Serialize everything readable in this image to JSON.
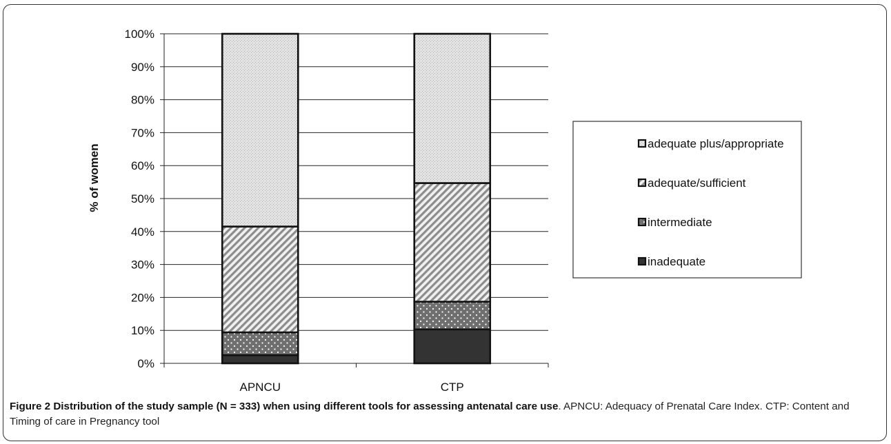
{
  "caption": {
    "label": "Figure 2",
    "title": "Distribution of the study sample (N = 333) when using different tools for assessing antenatal care use",
    "text": ". APNCU: Adequacy of Prenatal Care Index. CTP: Content and Timing of care in Pregnancy tool"
  },
  "chart_data": {
    "type": "bar",
    "stacked": true,
    "ylabel": "% of women",
    "xlabel": "",
    "ylim": [
      0,
      100
    ],
    "yticks": [
      "0%",
      "10%",
      "20%",
      "30%",
      "40%",
      "50%",
      "60%",
      "70%",
      "80%",
      "90%",
      "100%"
    ],
    "categories": [
      "APNCU",
      "CTP"
    ],
    "grid": "horizontal",
    "legend_position": "right",
    "series": [
      {
        "name": "inadequate",
        "values": [
          2.5,
          10.3
        ],
        "color": "#333333",
        "pattern": "solid"
      },
      {
        "name": "intermediate",
        "values": [
          6.9,
          8.4
        ],
        "color": "#777777",
        "pattern": "dots"
      },
      {
        "name": "adequate/sufficient",
        "values": [
          32.1,
          36.0
        ],
        "color": "#c8c8c8",
        "pattern": "diagonal"
      },
      {
        "name": "adequate plus/appropriate",
        "values": [
          58.5,
          45.3
        ],
        "color": "#e3e3e3",
        "pattern": "fine-cross"
      }
    ],
    "legend_order": [
      "adequate plus/appropriate",
      "adequate/sufficient",
      "intermediate",
      "inadequate"
    ]
  }
}
